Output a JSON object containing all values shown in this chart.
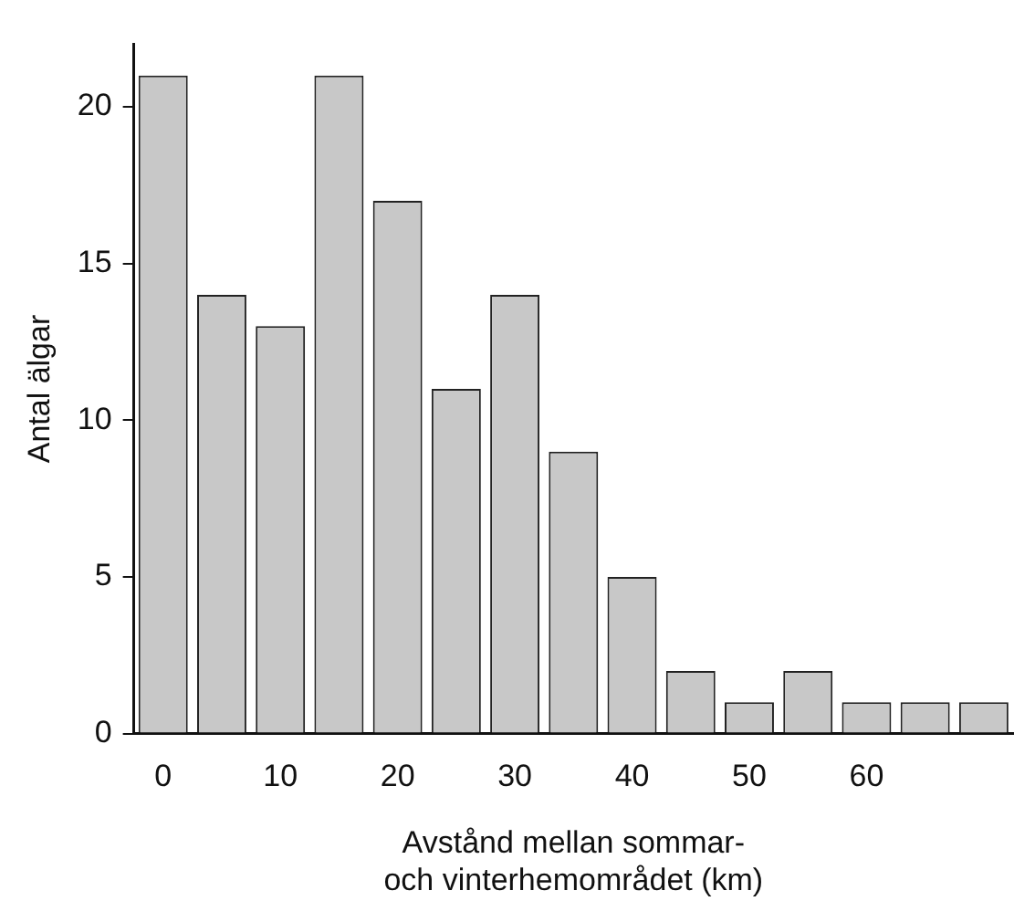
{
  "chart_data": {
    "type": "histogram",
    "xlabel": "Avstånd mellan sommar-\noch vinterhemområdet (km)",
    "ylabel": "Antal älgar",
    "bins": [
      -2.5,
      2.5,
      7.5,
      12.5,
      17.5,
      22.5,
      27.5,
      32.5,
      37.5,
      42.5,
      47.5,
      52.5,
      57.5,
      62.5,
      67.5,
      72.5
    ],
    "values": [
      21,
      14,
      13,
      21,
      17,
      11,
      14,
      9,
      5,
      2,
      1,
      2,
      1,
      1,
      1
    ],
    "color": "#c8c8c8",
    "xlim": [
      -2.5,
      72.5
    ],
    "xticks": [
      0,
      10,
      20,
      30,
      40,
      50,
      60
    ],
    "ylim": [
      0,
      22
    ],
    "yticks": [
      0,
      5,
      10,
      15,
      20
    ],
    "grid": false,
    "legend": false
  }
}
